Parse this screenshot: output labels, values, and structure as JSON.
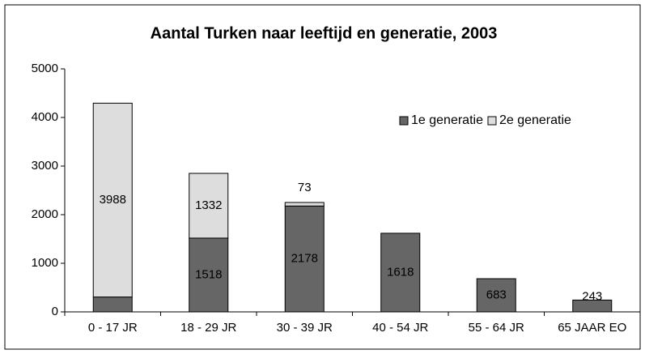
{
  "chart_data": {
    "type": "stacked_bar",
    "title": "Aantal Turken naar leeftijd en generatie, 2003",
    "categories": [
      "0 - 17 JR",
      "18 - 29 JR",
      "30 - 39 JR",
      "40 - 54 JR",
      "55 - 64 JR",
      "65 JAAR EO"
    ],
    "series": [
      {
        "name": "1e generatie",
        "color": "#666666",
        "values": [
          306,
          1518,
          2178,
          1618,
          683,
          243
        ]
      },
      {
        "name": "2e generatie",
        "color": "#dddddd",
        "values": [
          3988,
          1332,
          73,
          null,
          null,
          null
        ]
      }
    ],
    "ylim": [
      0,
      5000
    ],
    "yticks": [
      0,
      1000,
      2000,
      3000,
      4000,
      5000
    ],
    "grid": false,
    "legend": "top-right"
  }
}
